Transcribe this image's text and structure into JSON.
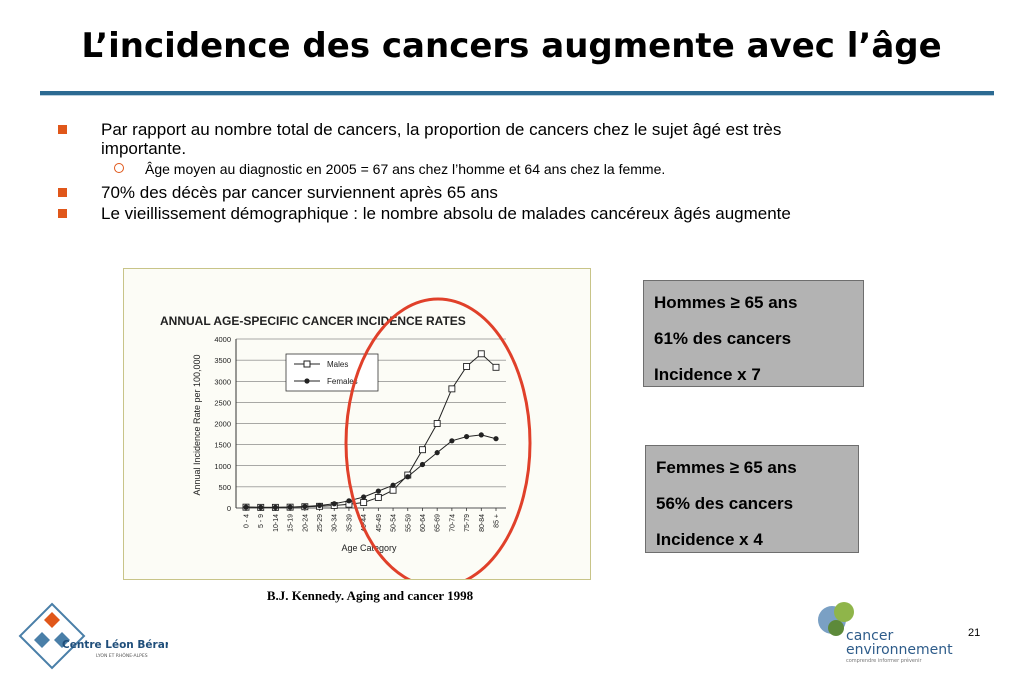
{
  "slide": {
    "title": "L’incidence des cancers augmente avec l’âge",
    "page_number": "21"
  },
  "bullets": [
    {
      "text": "Par rapport au nombre total de cancers, la proportion de cancers chez le sujet âgé est très importante."
    },
    {
      "text": "Âge moyen au diagnostic en 2005 = 67 ans chez l’homme et 64 ans chez la femme."
    },
    {
      "text": "70% des décès par cancer surviennent après 65 ans"
    },
    {
      "text": "Le vieillissement démographique : le nombre absolu de malades cancéreux âgés augmente"
    }
  ],
  "boxes": {
    "men": {
      "line1": "Hommes ≥ 65 ans",
      "line2": "61% des cancers",
      "line3": "Incidence x 7"
    },
    "women": {
      "line1": "Femmes ≥ 65 ans",
      "line2": "56% des cancers",
      "line3": "Incidence x 4"
    }
  },
  "caption": "B.J. Kennedy. Aging and cancer 1998",
  "logos": {
    "left": {
      "name": "Centre Léon Bérard",
      "sub": "LYON ET RHÔNE-ALPES"
    },
    "right": {
      "line1": "cancer",
      "line2": "environnement",
      "tagline": "comprendre informer prévenir"
    }
  },
  "colors": {
    "accent_orange": "#e0571a",
    "rule_blue": "#2c6a92",
    "highlight_circle": "#e0402a",
    "box_gray": "#b3b3b3"
  },
  "chart_data": {
    "type": "line",
    "title": "ANNUAL AGE-SPECIFIC CANCER INCIDENCE RATES",
    "xlabel": "Age Category",
    "ylabel": "Annual Incidence Rate per 100,000",
    "ylim": [
      0,
      4000
    ],
    "yticks": [
      "0",
      "500",
      "1000",
      "1500",
      "2000",
      "2500",
      "3000",
      "3500",
      "4000"
    ],
    "categories": [
      "0 - 4",
      "5 - 9",
      "10-14",
      "15-19",
      "20-24",
      "25-29",
      "30-34",
      "35-39",
      "40-44",
      "45-49",
      "50-54",
      "55-59",
      "60-64",
      "65-69",
      "70-74",
      "75-79",
      "80-84",
      "85 +"
    ],
    "series": [
      {
        "name": "Males",
        "marker": "square",
        "values": [
          20,
          15,
          15,
          20,
          30,
          40,
          60,
          90,
          130,
          250,
          420,
          780,
          1380,
          2000,
          2820,
          3350,
          3650,
          3330
        ]
      },
      {
        "name": "Females",
        "marker": "circle",
        "values": [
          20,
          15,
          15,
          20,
          35,
          60,
          100,
          170,
          260,
          400,
          540,
          740,
          1030,
          1310,
          1590,
          1690,
          1730,
          1640
        ]
      }
    ],
    "grid": true,
    "legend": "top-left"
  }
}
